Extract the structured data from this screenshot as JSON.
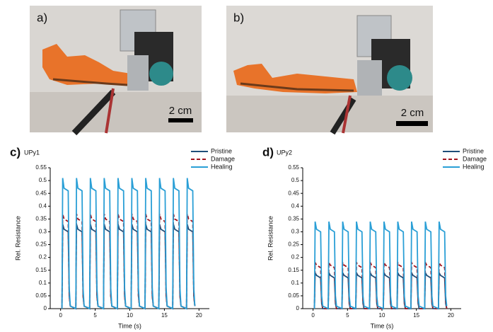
{
  "panels": [
    {
      "label": "a)",
      "scale": "2 cm"
    },
    {
      "label": "b)",
      "scale": "2 cm"
    }
  ],
  "chart_data": [
    {
      "type": "line",
      "panel": "c)",
      "title": "UPy1",
      "x_label": "Time (s)",
      "y_label": "Rel. Resistance",
      "xlim": [
        -1.5,
        21.5
      ],
      "xticks": [
        0,
        5,
        10,
        15,
        20
      ],
      "ylim": [
        0,
        0.55
      ],
      "yticks": [
        0,
        0.05,
        0.1,
        0.15,
        0.2,
        0.25,
        0.3,
        0.35,
        0.4,
        0.45,
        0.5,
        0.55
      ],
      "x": [
        0.2,
        0.3,
        0.5,
        1.1,
        1.25,
        1.4,
        2.2,
        2.3,
        2.5,
        3.1,
        3.25,
        3.4,
        4.2,
        4.3,
        4.5,
        5.1,
        5.25,
        5.4,
        6.2,
        6.3,
        6.5,
        7.1,
        7.25,
        7.4,
        8.2,
        8.3,
        8.5,
        9.1,
        9.25,
        9.4,
        10.2,
        10.3,
        10.5,
        11.1,
        11.25,
        11.4,
        12.2,
        12.3,
        12.5,
        13.1,
        13.25,
        13.4,
        14.2,
        14.3,
        14.5,
        15.1,
        15.25,
        15.4,
        16.2,
        16.3,
        16.5,
        17.1,
        17.25,
        17.4,
        18.2,
        18.3,
        18.5,
        19.1,
        19.25,
        19.4
      ],
      "series": [
        {
          "name": "Pristine",
          "color": "#1f4e79",
          "values": [
            0,
            0.33,
            0.31,
            0.3,
            0.05,
            0.01,
            0,
            0.33,
            0.31,
            0.3,
            0.05,
            0.01,
            0,
            0.33,
            0.31,
            0.3,
            0.05,
            0.01,
            0,
            0.33,
            0.31,
            0.3,
            0.05,
            0.01,
            0,
            0.33,
            0.31,
            0.3,
            0.05,
            0.01,
            0,
            0.33,
            0.31,
            0.3,
            0.05,
            0.01,
            0,
            0.33,
            0.31,
            0.3,
            0.05,
            0.01,
            0,
            0.33,
            0.31,
            0.3,
            0.05,
            0.01,
            0,
            0.33,
            0.31,
            0.3,
            0.05,
            0.01,
            0,
            0.33,
            0.31,
            0.3,
            0.05,
            0.01
          ]
        },
        {
          "name": "Damage",
          "color": "#a0141e",
          "values": [
            0,
            0.37,
            0.35,
            0.34,
            0.05,
            0.01,
            0,
            0.37,
            0.35,
            0.34,
            0.05,
            0.01,
            0,
            0.37,
            0.35,
            0.34,
            0.05,
            0.01,
            0,
            0.37,
            0.35,
            0.34,
            0.05,
            0.01,
            0,
            0.37,
            0.35,
            0.34,
            0.05,
            0.01,
            0,
            0.37,
            0.35,
            0.34,
            0.05,
            0.01,
            0,
            0.37,
            0.35,
            0.34,
            0.05,
            0.01,
            0,
            0.37,
            0.35,
            0.34,
            0.05,
            0.01,
            0,
            0.37,
            0.35,
            0.34,
            0.05,
            0.01,
            0,
            0.37,
            0.35,
            0.34,
            0.05,
            0.01
          ]
        },
        {
          "name": "Healing",
          "color": "#2a9fd6",
          "values": [
            0,
            0.51,
            0.47,
            0.46,
            0.08,
            0.01,
            0,
            0.51,
            0.47,
            0.46,
            0.08,
            0.01,
            0,
            0.51,
            0.47,
            0.46,
            0.08,
            0.01,
            0,
            0.51,
            0.47,
            0.46,
            0.08,
            0.01,
            0,
            0.51,
            0.47,
            0.46,
            0.08,
            0.01,
            0,
            0.51,
            0.47,
            0.46,
            0.08,
            0.01,
            0,
            0.51,
            0.47,
            0.46,
            0.08,
            0.01,
            0,
            0.51,
            0.47,
            0.46,
            0.08,
            0.01,
            0,
            0.51,
            0.47,
            0.46,
            0.08,
            0.01,
            0,
            0.51,
            0.47,
            0.46,
            0.08,
            0.01
          ]
        }
      ]
    },
    {
      "type": "line",
      "panel": "d)",
      "title": "UPy2",
      "x_label": "Time (s)",
      "y_label": "Rel. Resistance",
      "xlim": [
        -1.5,
        21.5
      ],
      "xticks": [
        0,
        5,
        10,
        15,
        20
      ],
      "ylim": [
        0,
        0.55
      ],
      "yticks": [
        0,
        0.05,
        0.1,
        0.15,
        0.2,
        0.25,
        0.3,
        0.35,
        0.4,
        0.45,
        0.5,
        0.55
      ],
      "x": [
        0.2,
        0.3,
        0.5,
        1.1,
        1.25,
        1.4,
        2.2,
        2.3,
        2.5,
        3.1,
        3.25,
        3.4,
        4.2,
        4.3,
        4.5,
        5.1,
        5.25,
        5.4,
        6.2,
        6.3,
        6.5,
        7.1,
        7.25,
        7.4,
        8.2,
        8.3,
        8.5,
        9.1,
        9.25,
        9.4,
        10.2,
        10.3,
        10.5,
        11.1,
        11.25,
        11.4,
        12.2,
        12.3,
        12.5,
        13.1,
        13.25,
        13.4,
        14.2,
        14.3,
        14.5,
        15.1,
        15.25,
        15.4,
        16.2,
        16.3,
        16.5,
        17.1,
        17.25,
        17.4,
        18.2,
        18.3,
        18.5,
        19.1,
        19.25,
        19.4
      ],
      "series": [
        {
          "name": "Pristine",
          "color": "#1f4e79",
          "values": [
            0,
            0.14,
            0.13,
            0.12,
            0.02,
            0,
            0,
            0.14,
            0.13,
            0.12,
            0.02,
            0,
            0,
            0.14,
            0.13,
            0.12,
            0.02,
            0,
            0,
            0.14,
            0.13,
            0.12,
            0.02,
            0,
            0,
            0.14,
            0.13,
            0.12,
            0.02,
            0,
            0,
            0.14,
            0.13,
            0.12,
            0.02,
            0,
            0,
            0.14,
            0.13,
            0.12,
            0.02,
            0,
            0,
            0.14,
            0.13,
            0.12,
            0.02,
            0,
            0,
            0.14,
            0.13,
            0.12,
            0.02,
            0,
            0,
            0.14,
            0.13,
            0.12,
            0.02,
            0
          ]
        },
        {
          "name": "Damage",
          "color": "#a0141e",
          "values": [
            0,
            0.18,
            0.17,
            0.16,
            0.03,
            0,
            0,
            0.18,
            0.17,
            0.16,
            0.03,
            0,
            0,
            0.18,
            0.17,
            0.16,
            0.03,
            0,
            0,
            0.18,
            0.17,
            0.16,
            0.03,
            0,
            0,
            0.18,
            0.17,
            0.16,
            0.03,
            0,
            0,
            0.18,
            0.17,
            0.16,
            0.03,
            0,
            0,
            0.18,
            0.17,
            0.16,
            0.03,
            0,
            0,
            0.18,
            0.17,
            0.16,
            0.03,
            0,
            0,
            0.18,
            0.17,
            0.16,
            0.03,
            0,
            0,
            0.18,
            0.17,
            0.16,
            0.03,
            0
          ]
        },
        {
          "name": "Healing",
          "color": "#2a9fd6",
          "values": [
            0,
            0.34,
            0.31,
            0.3,
            0.05,
            0.01,
            0,
            0.34,
            0.31,
            0.3,
            0.05,
            0.01,
            0,
            0.34,
            0.31,
            0.3,
            0.05,
            0.01,
            0,
            0.34,
            0.31,
            0.3,
            0.05,
            0.01,
            0,
            0.34,
            0.31,
            0.3,
            0.05,
            0.01,
            0,
            0.34,
            0.31,
            0.3,
            0.05,
            0.01,
            0,
            0.34,
            0.31,
            0.3,
            0.05,
            0.01,
            0,
            0.34,
            0.31,
            0.3,
            0.05,
            0.01,
            0,
            0.34,
            0.31,
            0.3,
            0.05,
            0.01,
            0,
            0.34,
            0.31,
            0.3,
            0.05,
            0.01
          ]
        }
      ]
    }
  ]
}
